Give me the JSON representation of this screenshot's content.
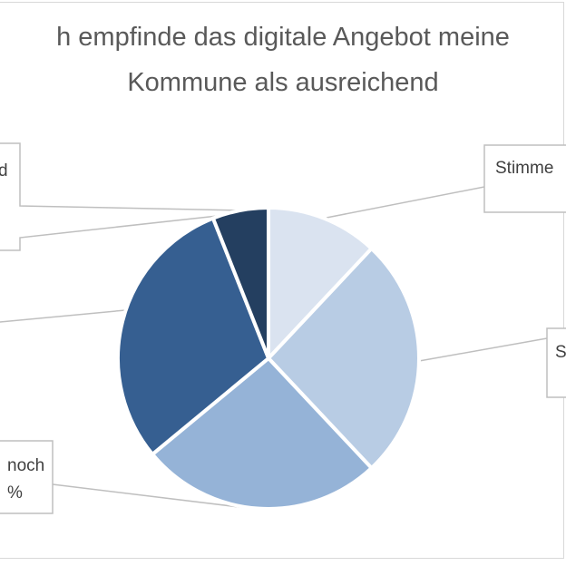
{
  "chart_data": {
    "type": "pie",
    "title_lines": [
      "h empfinde das digitale Angebot meine",
      "Kommune als ausreichend"
    ],
    "slices": [
      {
        "label": "Stimme",
        "value": 12,
        "color": "#dae3f0"
      },
      {
        "label": "S",
        "value": 26,
        "color": "#b8cce4"
      },
      {
        "label": "noch\n%",
        "value": 26,
        "color": "#95b3d7"
      },
      {
        "label": "",
        "value": 30,
        "color": "#365f91"
      },
      {
        "label": "d",
        "value": 6,
        "color": "#243f60"
      }
    ],
    "start_angle_deg": 0,
    "direction": "clockwise",
    "legend": "none"
  }
}
